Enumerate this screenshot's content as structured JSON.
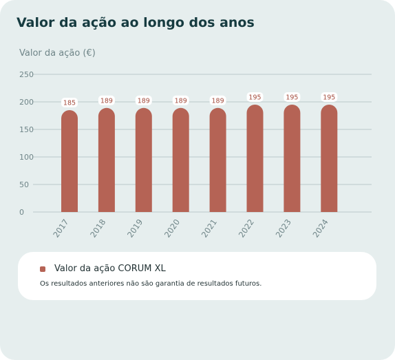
{
  "title": "Valor da ação ao longo dos anos",
  "colors": {
    "background": "#e6eeee",
    "bar": "#b56355",
    "grid": "#b9c8c9",
    "axis_text": "#6f8588",
    "value_label": "#a34b3c"
  },
  "legend": {
    "label": "Valor da ação CORUM XL",
    "disclaimer": "Os resultados anteriores não são garantia de resultados futuros."
  },
  "chart_data": {
    "type": "bar",
    "title": "Valor da ação ao longo dos anos",
    "ylabel": "Valor da ação (€)",
    "xlabel": "",
    "categories": [
      "2017",
      "2018",
      "2019",
      "2020",
      "2021",
      "2022",
      "2023",
      "2024"
    ],
    "series": [
      {
        "name": "Valor da ação CORUM XL",
        "values": [
          185,
          189,
          189,
          189,
          189,
          195,
          195,
          195
        ]
      }
    ],
    "ylim": [
      0,
      250
    ],
    "yticks": [
      0,
      50,
      100,
      150,
      200,
      250
    ],
    "grid": true,
    "data_labels": true,
    "legend_position": "bottom"
  }
}
